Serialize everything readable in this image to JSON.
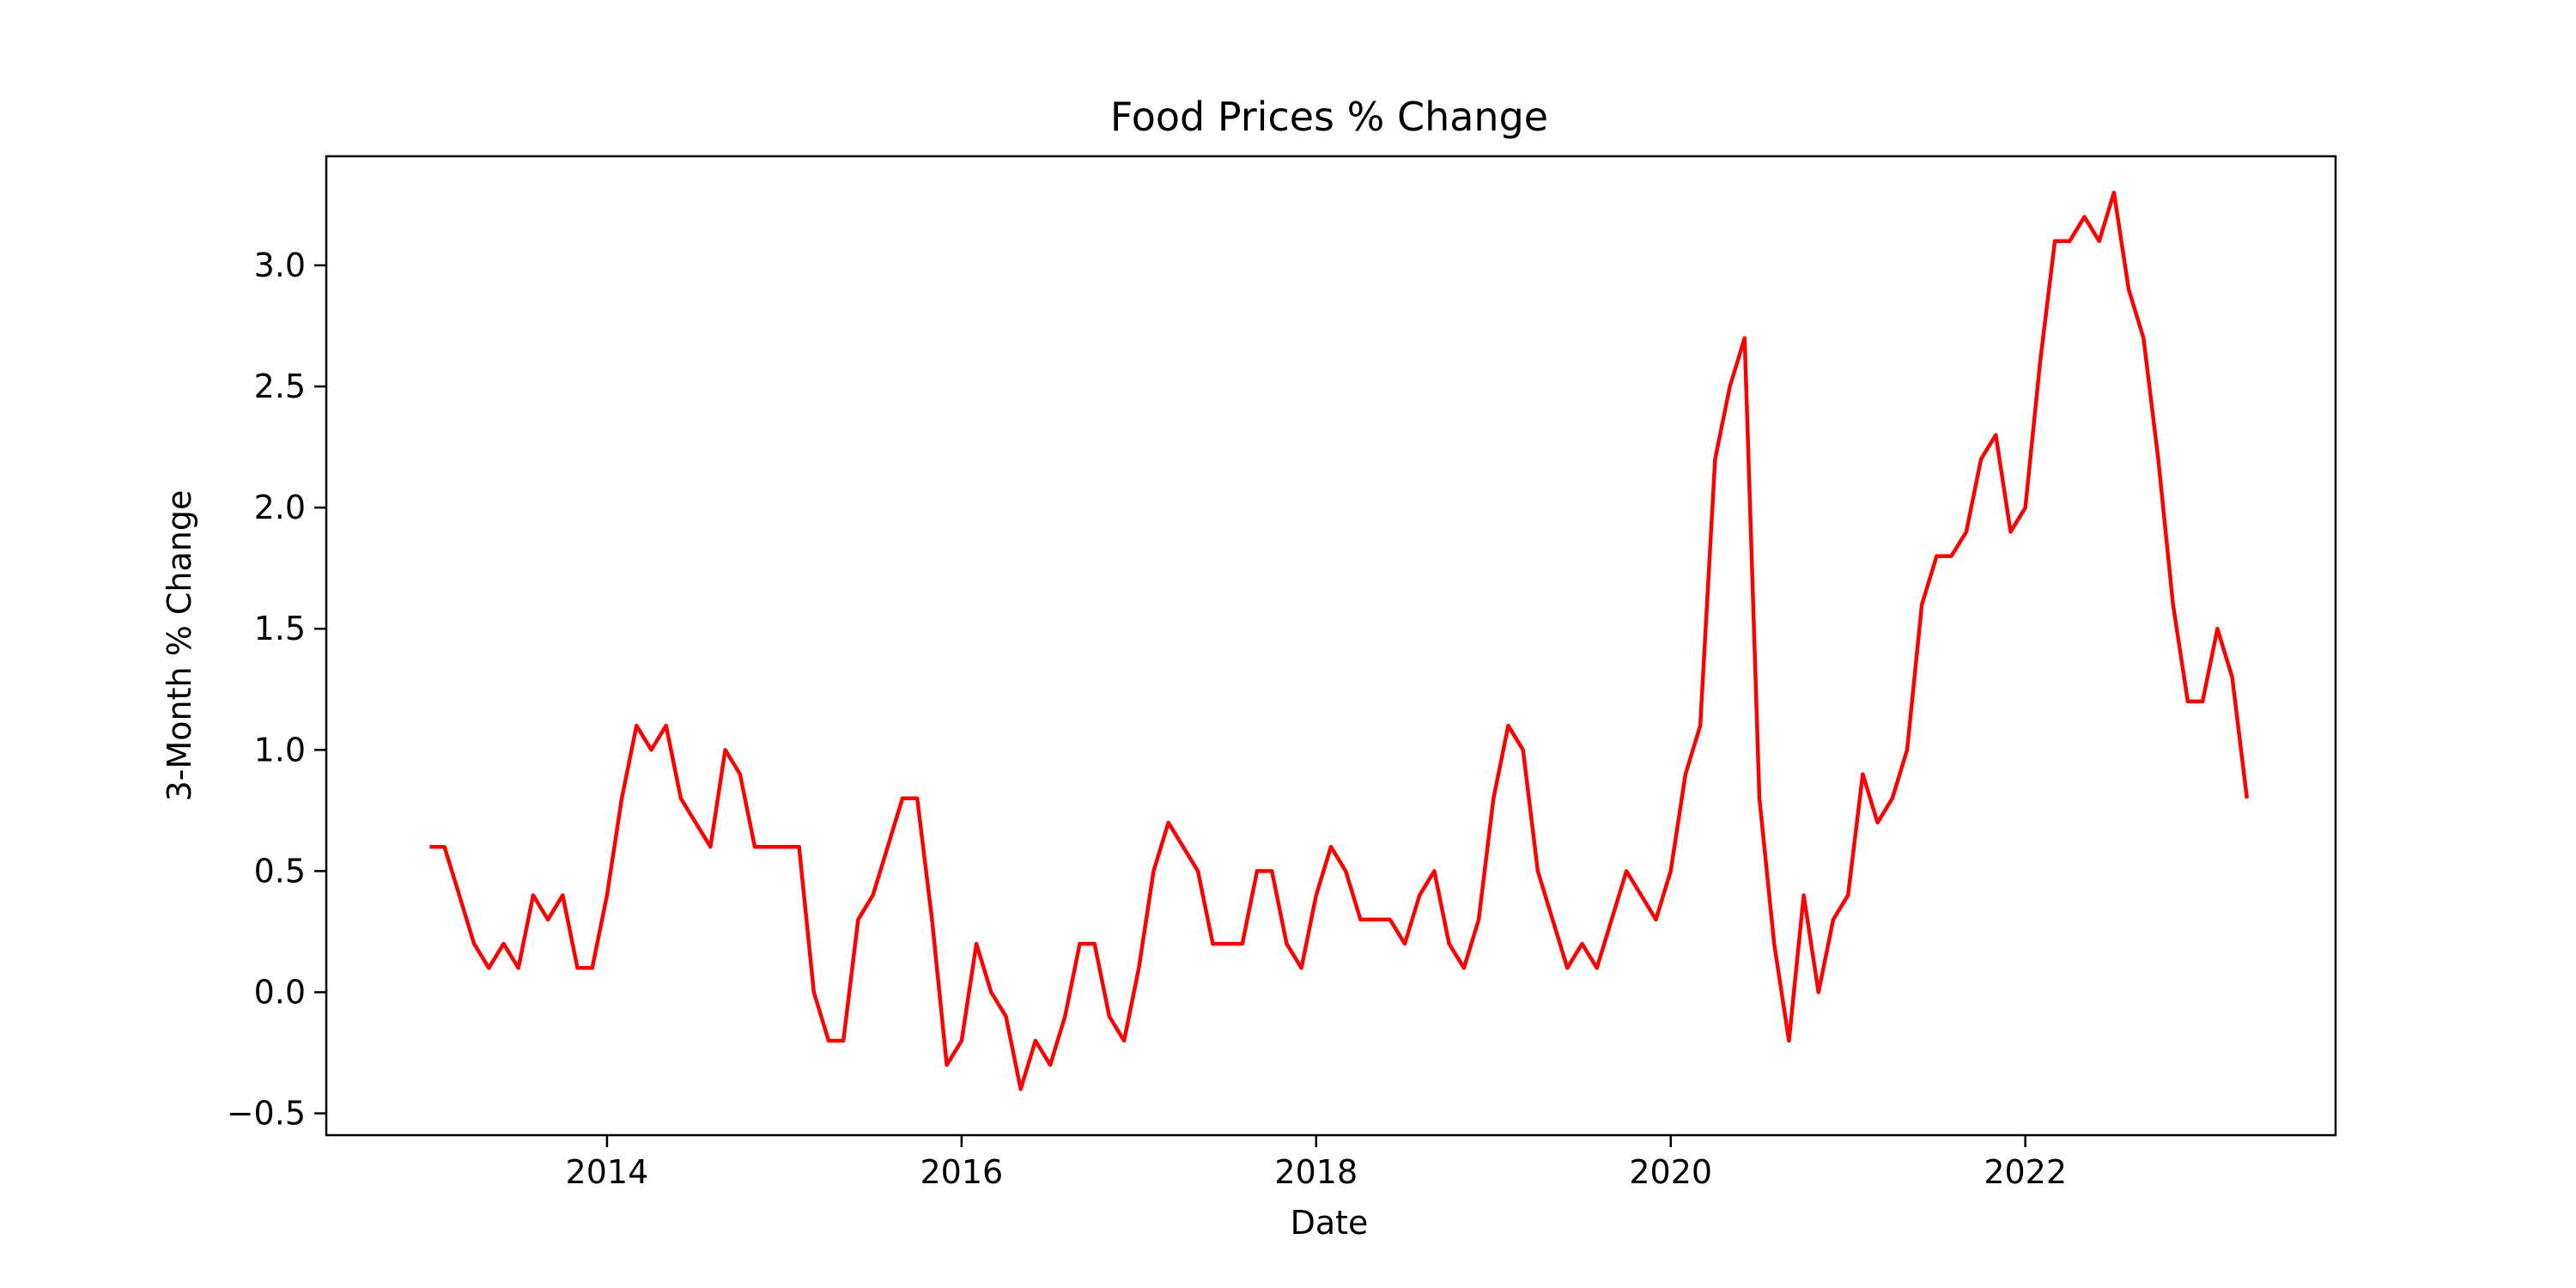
{
  "chart_data": {
    "type": "line",
    "title": "Food Prices % Change",
    "xlabel": "Date",
    "ylabel": "3-Month % Change",
    "x_tick_labels": [
      "2014",
      "2016",
      "2018",
      "2020",
      "2022"
    ],
    "y_tick_labels": [
      "−0.5",
      "0.0",
      "0.5",
      "1.0",
      "1.5",
      "2.0",
      "2.5",
      "3.0"
    ],
    "y_ticks": [
      -0.5,
      0.0,
      0.5,
      1.0,
      1.5,
      2.0,
      2.5,
      3.0
    ],
    "xlim": [
      "2012-06",
      "2023-10"
    ],
    "ylim": [
      -0.59,
      3.45
    ],
    "grid": false,
    "legend": "none",
    "line_color": "#ff0000",
    "series": [
      {
        "x": [
          "2013-01",
          "2013-02",
          "2013-03",
          "2013-04",
          "2013-05",
          "2013-06",
          "2013-07",
          "2013-08",
          "2013-09",
          "2013-10",
          "2013-11",
          "2013-12",
          "2014-01",
          "2014-02",
          "2014-03",
          "2014-04",
          "2014-05",
          "2014-06",
          "2014-07",
          "2014-08",
          "2014-09",
          "2014-10",
          "2014-11",
          "2014-12",
          "2015-01",
          "2015-02",
          "2015-03",
          "2015-04",
          "2015-05",
          "2015-06",
          "2015-07",
          "2015-08",
          "2015-09",
          "2015-10",
          "2015-11",
          "2015-12",
          "2016-01",
          "2016-02",
          "2016-03",
          "2016-04",
          "2016-05",
          "2016-06",
          "2016-07",
          "2016-08",
          "2016-09",
          "2016-10",
          "2016-11",
          "2016-12",
          "2017-01",
          "2017-02",
          "2017-03",
          "2017-04",
          "2017-05",
          "2017-06",
          "2017-07",
          "2017-08",
          "2017-09",
          "2017-10",
          "2017-11",
          "2017-12",
          "2018-01",
          "2018-02",
          "2018-03",
          "2018-04",
          "2018-05",
          "2018-06",
          "2018-07",
          "2018-08",
          "2018-09",
          "2018-10",
          "2018-11",
          "2018-12",
          "2019-01",
          "2019-02",
          "2019-03",
          "2019-04",
          "2019-05",
          "2019-06",
          "2019-07",
          "2019-08",
          "2019-09",
          "2019-10",
          "2019-11",
          "2019-12",
          "2020-01",
          "2020-02",
          "2020-03",
          "2020-04",
          "2020-05",
          "2020-06",
          "2020-07",
          "2020-08",
          "2020-09",
          "2020-10",
          "2020-11",
          "2020-12",
          "2021-01",
          "2021-02",
          "2021-03",
          "2021-04",
          "2021-05",
          "2021-06",
          "2021-07",
          "2021-08",
          "2021-09",
          "2021-10",
          "2021-11",
          "2021-12",
          "2022-01",
          "2022-02",
          "2022-03",
          "2022-04",
          "2022-05",
          "2022-06",
          "2022-07",
          "2022-08",
          "2022-09",
          "2022-10",
          "2022-11",
          "2022-12",
          "2023-01",
          "2023-02",
          "2023-03",
          "2023-04"
        ],
        "values": [
          0.6,
          0.6,
          0.4,
          0.2,
          0.1,
          0.2,
          0.1,
          0.4,
          0.3,
          0.4,
          0.1,
          0.1,
          0.4,
          0.8,
          1.1,
          1.0,
          1.1,
          0.8,
          0.7,
          0.6,
          1.0,
          0.9,
          0.6,
          0.6,
          0.6,
          0.6,
          0.0,
          -0.2,
          -0.2,
          0.3,
          0.4,
          0.6,
          0.8,
          0.8,
          0.3,
          -0.3,
          -0.2,
          0.2,
          0.0,
          -0.1,
          -0.4,
          -0.2,
          -0.3,
          -0.1,
          0.2,
          0.2,
          -0.1,
          -0.2,
          0.1,
          0.5,
          0.7,
          0.6,
          0.5,
          0.2,
          0.2,
          0.2,
          0.5,
          0.5,
          0.2,
          0.1,
          0.4,
          0.6,
          0.5,
          0.3,
          0.3,
          0.3,
          0.2,
          0.4,
          0.5,
          0.2,
          0.1,
          0.3,
          0.8,
          1.1,
          1.0,
          0.5,
          0.3,
          0.1,
          0.2,
          0.1,
          0.3,
          0.5,
          0.4,
          0.3,
          0.5,
          0.9,
          1.1,
          2.2,
          2.5,
          2.7,
          0.8,
          0.2,
          -0.2,
          0.4,
          0.0,
          0.3,
          0.4,
          0.9,
          0.7,
          0.8,
          1.0,
          1.6,
          1.8,
          1.8,
          1.9,
          2.2,
          2.3,
          1.9,
          2.0,
          2.6,
          3.1,
          3.1,
          3.2,
          3.1,
          3.3,
          2.9,
          2.7,
          2.2,
          1.6,
          1.2,
          1.2,
          1.5,
          1.3,
          0.8
        ]
      }
    ]
  }
}
